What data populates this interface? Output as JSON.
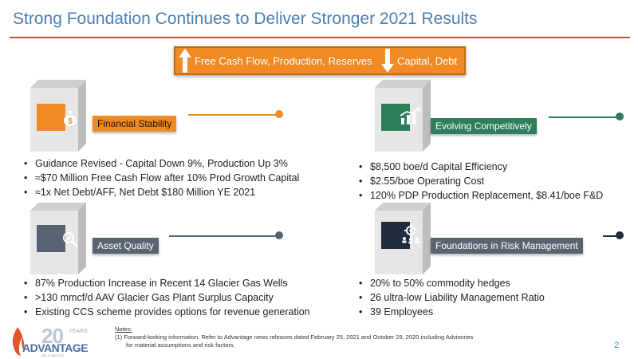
{
  "title": "Strong Foundation Continues to Deliver Stronger 2021 Results",
  "banner": {
    "left_text": "Free Cash Flow, Production, Reserves",
    "right_text": "Capital, Debt"
  },
  "sections": [
    {
      "label": "Financial Stability",
      "icon": "money-bag-icon",
      "bullets": [
        "Guidance Revised - Capital Down 9%, Production Up 3%",
        "≈$70 Million Free Cash Flow after 10% Prod Growth Capital",
        "≈1x Net Debt/AFF, Net Debt $180 Million YE 2021"
      ]
    },
    {
      "label": "Evolving Competitively",
      "icon": "growth-chart-icon",
      "bullets": [
        "$8,500 boe/d Capital Efficiency",
        "$2.55/boe Operating Cost",
        "120% PDP Production Replacement, $8.41/boe F&D"
      ]
    },
    {
      "label": "Asset Quality",
      "icon": "magnifier-check-icon",
      "bullets": [
        "87% Production Increase in Recent 14 Glacier Gas Wells",
        ">130 mmcf/d AAV Glacier Gas Plant Surplus Capacity",
        "Existing CCS scheme provides options for revenue generation"
      ]
    },
    {
      "label": "Foundations in Risk Management",
      "icon": "gear-people-icon",
      "bullets": [
        "20% to 50% commodity hedges",
        "26 ultra-low Liability Management Ratio",
        "39 Employees"
      ]
    }
  ],
  "notes": {
    "title": "Notes:",
    "line1": "(1)  Forward-looking information. Refer to Advantage news releases dated February 25, 2021 and October 29, 2020 including Advisories",
    "line2": "for material assumptions and risk factors."
  },
  "page_number": "2",
  "logo": {
    "years_number": "20",
    "years_word": "YEARS",
    "name": "ADVANTAGE",
    "sub": "OIL & GAS LTD."
  },
  "colors": {
    "title": "#4a7fb5",
    "orange": "#f08a24",
    "green": "#2e7d5b",
    "slate": "#596473",
    "navy": "#1f2d3d"
  }
}
